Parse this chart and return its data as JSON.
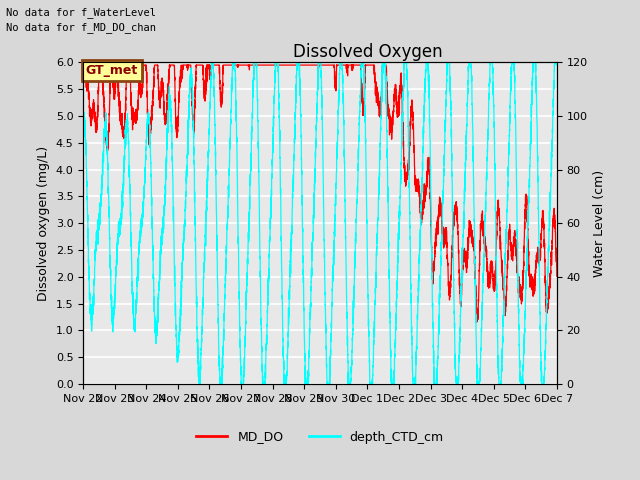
{
  "title": "Dissolved Oxygen",
  "ylabel_left": "Dissolved oxygen (mg/L)",
  "ylabel_right": "Water Level (cm)",
  "ylim_left": [
    0.0,
    6.0
  ],
  "ylim_right": [
    0,
    120
  ],
  "yticks_left": [
    0.0,
    0.5,
    1.0,
    1.5,
    2.0,
    2.5,
    3.0,
    3.5,
    4.0,
    4.5,
    5.0,
    5.5,
    6.0
  ],
  "yticks_right": [
    0,
    20,
    40,
    60,
    80,
    100,
    120
  ],
  "annotation_lines": [
    "No data for f_WaterLevel",
    "No data for f_MD_DO_chan"
  ],
  "legend_box_label": "GT_met",
  "legend_box_color": "#ffff99",
  "legend_box_border": "#8B4513",
  "line1_color": "#ff0000",
  "line2_color": "#00ffff",
  "line1_label": "MD_DO",
  "line2_label": "depth_CTD_cm",
  "plot_bg_color": "#e8e8e8",
  "grid_color": "#ffffff",
  "title_fontsize": 12,
  "label_fontsize": 9,
  "tick_fontsize": 8,
  "x_tick_labels": [
    "Nov 22",
    "Nov 23",
    "Nov 24",
    "Nov 25",
    "Nov 26",
    "Nov 27",
    "Nov 28",
    "Nov 29",
    "Nov 30",
    "Dec 1",
    "Dec 2",
    "Dec 3",
    "Dec 4",
    "Dec 5",
    "Dec 6",
    "Dec 7"
  ]
}
